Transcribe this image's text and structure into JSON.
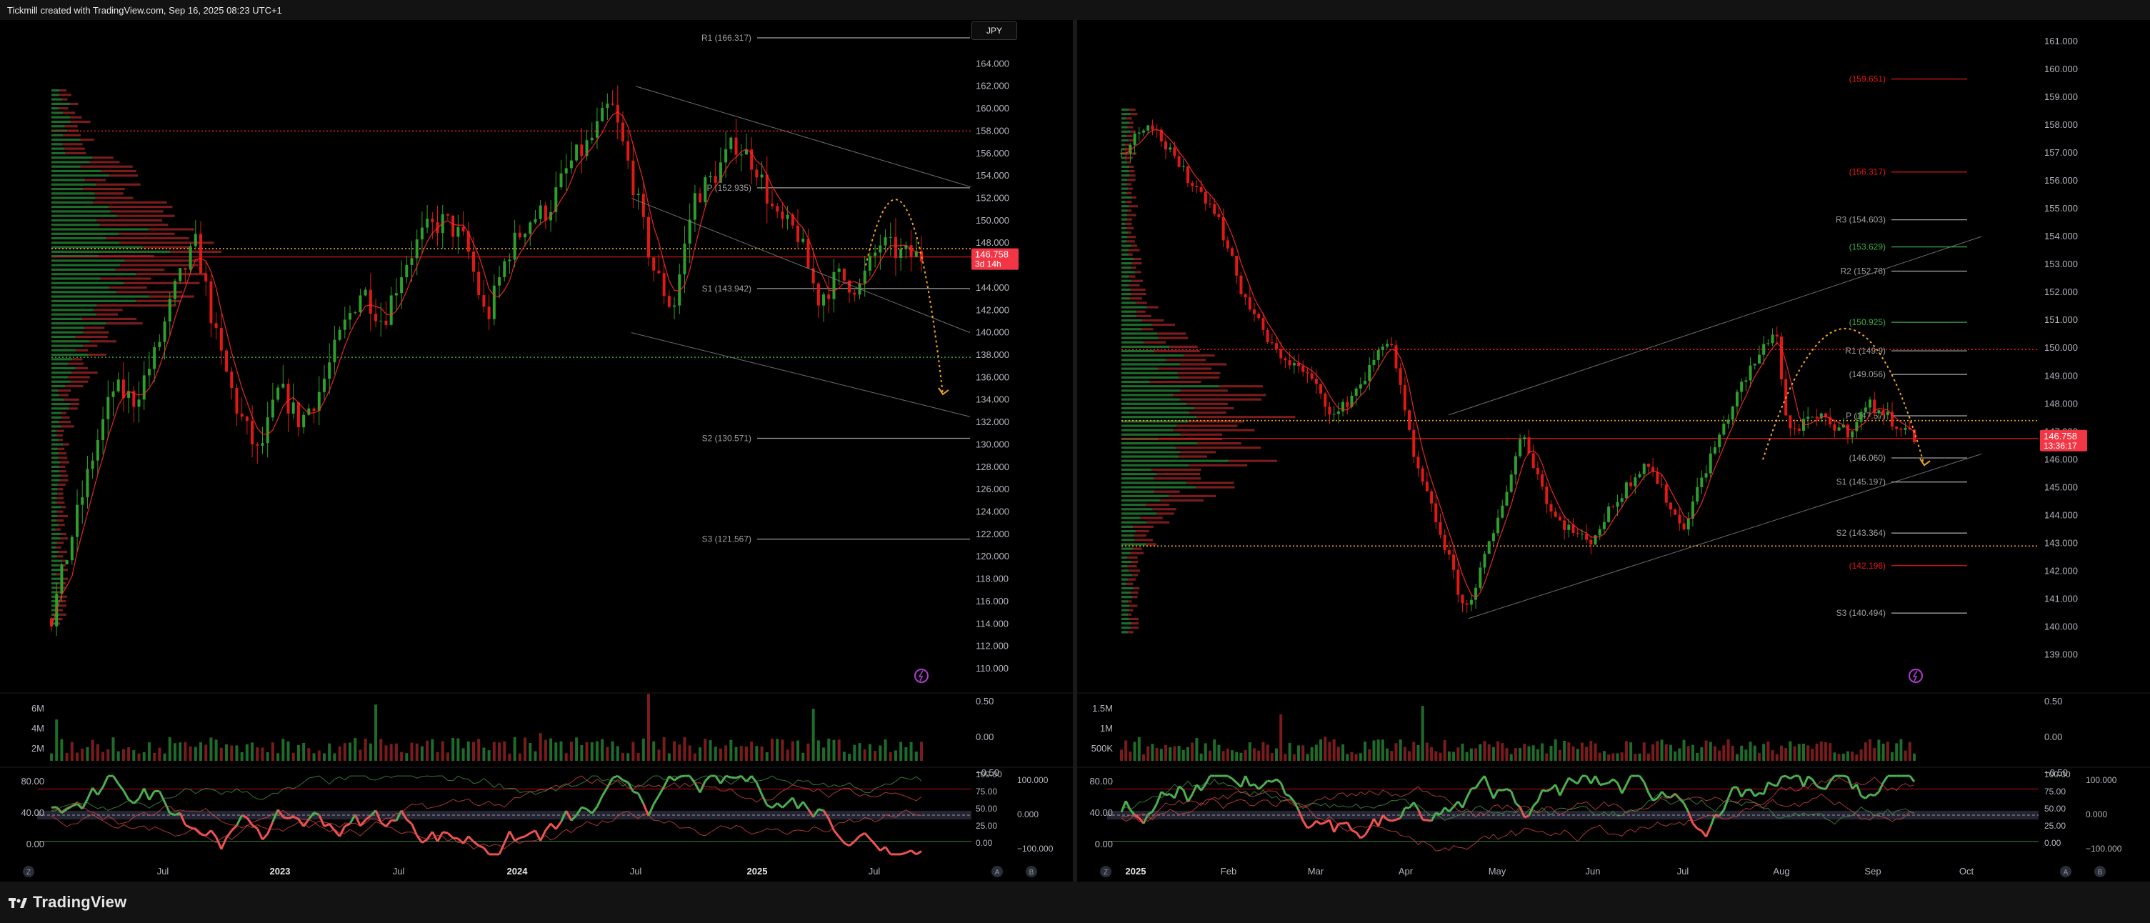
{
  "app": {
    "header_text": "Tickmill created with TradingView.com, Sep 16, 2025 08:23 UTC+1",
    "brand": "TradingView",
    "currency_button": "JPY"
  },
  "colors": {
    "up": "#2e9e2e",
    "down": "#e01818",
    "vp_up": "#1f6b2a",
    "vp_down": "#7a1c1c",
    "price_badge": "#f23645",
    "orange": "#f5a623",
    "green_line": "#39a845",
    "rsi_up": "#4caf50",
    "rsi_down": "#ef5350"
  },
  "chart_data": [
    {
      "type": "candlestick",
      "panel": "left",
      "timeframe_hint": "weekly",
      "ylim": [
        110,
        166
      ],
      "y_ticks": [
        "164.000",
        "162.000",
        "160.000",
        "158.000",
        "156.000",
        "154.000",
        "152.000",
        "150.000",
        "148.000",
        "146.000",
        "144.000",
        "142.000",
        "140.000",
        "138.000",
        "136.000",
        "134.000",
        "132.000",
        "130.000",
        "128.000",
        "126.000",
        "124.000",
        "122.000",
        "120.000",
        "118.000",
        "116.000",
        "114.000",
        "112.000",
        "110.000"
      ],
      "x_ticks": [
        "Jul",
        "2023",
        "Jul",
        "2024",
        "Jul",
        "2025",
        "Jul"
      ],
      "price_path": [
        {
          "d": "2022-03",
          "v": 114.5
        },
        {
          "d": "2022-04",
          "v": 122
        },
        {
          "d": "2022-05",
          "v": 129
        },
        {
          "d": "2022-06",
          "v": 135
        },
        {
          "d": "2022-07",
          "v": 134
        },
        {
          "d": "2022-08",
          "v": 138
        },
        {
          "d": "2022-09",
          "v": 144
        },
        {
          "d": "2022-10",
          "v": 148
        },
        {
          "d": "2022-11",
          "v": 139
        },
        {
          "d": "2022-12",
          "v": 133
        },
        {
          "d": "2023-01",
          "v": 129
        },
        {
          "d": "2023-02",
          "v": 135
        },
        {
          "d": "2023-03",
          "v": 132
        },
        {
          "d": "2023-04",
          "v": 135
        },
        {
          "d": "2023-05",
          "v": 140
        },
        {
          "d": "2023-06",
          "v": 144
        },
        {
          "d": "2023-07",
          "v": 141
        },
        {
          "d": "2023-08",
          "v": 146
        },
        {
          "d": "2023-09",
          "v": 149
        },
        {
          "d": "2023-10",
          "v": 150
        },
        {
          "d": "2023-11",
          "v": 148
        },
        {
          "d": "2023-12",
          "v": 141
        },
        {
          "d": "2024-01",
          "v": 147
        },
        {
          "d": "2024-02",
          "v": 150
        },
        {
          "d": "2024-03",
          "v": 151
        },
        {
          "d": "2024-04",
          "v": 155
        },
        {
          "d": "2024-05",
          "v": 157
        },
        {
          "d": "2024-06",
          "v": 160.5
        },
        {
          "d": "2024-07",
          "v": 154
        },
        {
          "d": "2024-08",
          "v": 146
        },
        {
          "d": "2024-09",
          "v": 142
        },
        {
          "d": "2024-10",
          "v": 152
        },
        {
          "d": "2024-11",
          "v": 154
        },
        {
          "d": "2024-12",
          "v": 157
        },
        {
          "d": "2025-01",
          "v": 155
        },
        {
          "d": "2025-02",
          "v": 150
        },
        {
          "d": "2025-03",
          "v": 149
        },
        {
          "d": "2025-04",
          "v": 143
        },
        {
          "d": "2025-05",
          "v": 145
        },
        {
          "d": "2025-06",
          "v": 144
        },
        {
          "d": "2025-07",
          "v": 148
        },
        {
          "d": "2025-08",
          "v": 147
        },
        {
          "d": "2025-09",
          "v": 146.8
        }
      ],
      "pivots": [
        {
          "label": "R1 (166.317)",
          "value": 166.317,
          "color": "#9e9e9e"
        },
        {
          "label": "P (152.935)",
          "value": 152.935,
          "color": "#9e9e9e"
        },
        {
          "label": "S1 (143.942)",
          "value": 143.942,
          "color": "#9e9e9e"
        },
        {
          "label": "S2 (130.571)",
          "value": 130.571,
          "color": "#9e9e9e"
        },
        {
          "label": "S3 (121.567)",
          "value": 121.567,
          "color": "#9e9e9e"
        }
      ],
      "h_lines": [
        {
          "value": 158.0,
          "color": "#e01818",
          "style": "dotted"
        },
        {
          "value": 147.5,
          "color": "#f5a623",
          "style": "dotted"
        },
        {
          "value": 146.758,
          "color": "#e01818",
          "style": "solid"
        },
        {
          "value": 137.8,
          "color": "#39a845",
          "style": "dotted"
        }
      ],
      "last_price": {
        "value": "146.758",
        "countdown": "3d 14h"
      },
      "volume": {
        "y_ticks": [
          "6M",
          "4M",
          "2M"
        ],
        "right_ticks": [
          "0.50",
          "0.00",
          "−0.50"
        ]
      },
      "oscillator": {
        "y_ticks": [
          "80.00",
          "40.00",
          "0.00"
        ],
        "right_ticks_a": [
          "100.00",
          "75.00",
          "50.00",
          "25.00",
          "0.00"
        ],
        "right_ticks_b": [
          "100.000",
          "0.000",
          "−100.000"
        ]
      }
    },
    {
      "type": "candlestick",
      "panel": "right",
      "timeframe_hint": "daily",
      "ylim": [
        138.5,
        161
      ],
      "y_ticks": [
        "161.000",
        "160.000",
        "159.000",
        "158.000",
        "157.000",
        "156.000",
        "155.000",
        "154.000",
        "153.000",
        "152.000",
        "151.000",
        "150.000",
        "149.000",
        "148.000",
        "147.000",
        "146.000",
        "145.000",
        "144.000",
        "143.000",
        "142.000",
        "141.000",
        "140.000",
        "139.000"
      ],
      "x_ticks": [
        "2025",
        "Feb",
        "Mar",
        "Apr",
        "May",
        "Jun",
        "Jul",
        "Aug",
        "Sep",
        "Oct"
      ],
      "price_path": [
        {
          "d": "2025-01-01",
          "v": 157
        },
        {
          "d": "2025-01-10",
          "v": 158.2
        },
        {
          "d": "2025-01-20",
          "v": 156.5
        },
        {
          "d": "2025-02-01",
          "v": 155
        },
        {
          "d": "2025-02-10",
          "v": 152
        },
        {
          "d": "2025-02-20",
          "v": 150
        },
        {
          "d": "2025-03-01",
          "v": 149
        },
        {
          "d": "2025-03-10",
          "v": 147.5
        },
        {
          "d": "2025-03-20",
          "v": 149
        },
        {
          "d": "2025-03-28",
          "v": 150.5
        },
        {
          "d": "2025-04-05",
          "v": 146
        },
        {
          "d": "2025-04-15",
          "v": 143
        },
        {
          "d": "2025-04-22",
          "v": 140.5
        },
        {
          "d": "2025-05-01",
          "v": 143.5
        },
        {
          "d": "2025-05-10",
          "v": 147
        },
        {
          "d": "2025-05-20",
          "v": 144
        },
        {
          "d": "2025-06-01",
          "v": 143
        },
        {
          "d": "2025-06-10",
          "v": 144.5
        },
        {
          "d": "2025-06-20",
          "v": 146
        },
        {
          "d": "2025-07-01",
          "v": 143.5
        },
        {
          "d": "2025-07-10",
          "v": 146
        },
        {
          "d": "2025-07-20",
          "v": 148.5
        },
        {
          "d": "2025-08-01",
          "v": 150.8
        },
        {
          "d": "2025-08-05",
          "v": 147
        },
        {
          "d": "2025-08-15",
          "v": 147.5
        },
        {
          "d": "2025-08-25",
          "v": 147
        },
        {
          "d": "2025-09-01",
          "v": 148
        },
        {
          "d": "2025-09-10",
          "v": 147.3
        },
        {
          "d": "2025-09-16",
          "v": 146.8
        }
      ],
      "pivots": [
        {
          "label": "(159.651)",
          "value": 159.651,
          "color": "#e01818"
        },
        {
          "label": "(156.317)",
          "value": 156.317,
          "color": "#e01818"
        },
        {
          "label": "R3 (154.603)",
          "value": 154.603,
          "color": "#9e9e9e"
        },
        {
          "label": "(153.629)",
          "value": 153.629,
          "color": "#39a845"
        },
        {
          "label": "R2 (152.76)",
          "value": 152.76,
          "color": "#9e9e9e"
        },
        {
          "label": "(150.925)",
          "value": 150.925,
          "color": "#39a845"
        },
        {
          "label": "R1 (149.9)",
          "value": 149.9,
          "color": "#9e9e9e"
        },
        {
          "label": "(149.056)",
          "value": 149.056,
          "color": "#9e9e9e"
        },
        {
          "label": "P (147.57)",
          "value": 147.57,
          "color": "#9e9e9e"
        },
        {
          "label": "(146.060)",
          "value": 146.06,
          "color": "#9e9e9e"
        },
        {
          "label": "S1 (145.197)",
          "value": 145.197,
          "color": "#9e9e9e"
        },
        {
          "label": "S2 (143.364)",
          "value": 143.364,
          "color": "#9e9e9e"
        },
        {
          "label": "(142.196)",
          "value": 142.196,
          "color": "#e01818"
        },
        {
          "label": "S3 (140.494)",
          "value": 140.494,
          "color": "#9e9e9e"
        }
      ],
      "h_lines": [
        {
          "value": 149.95,
          "color": "#e01818",
          "style": "dotted"
        },
        {
          "value": 147.4,
          "color": "#f5a623",
          "style": "dotted"
        },
        {
          "value": 146.758,
          "color": "#e01818",
          "style": "solid"
        },
        {
          "value": 142.9,
          "color": "#f5a623",
          "style": "dotted"
        }
      ],
      "last_price": {
        "value": "146.758",
        "countdown": "13:36:17"
      },
      "volume": {
        "y_ticks": [
          "1.5M",
          "1M",
          "500K"
        ],
        "right_ticks": [
          "0.50",
          "0.00",
          "−0.50"
        ]
      },
      "oscillator": {
        "y_ticks": [
          "80.00",
          "40.00",
          "0.00"
        ],
        "right_ticks_a": [
          "100.00",
          "75.00",
          "50.00",
          "25.00",
          "0.00"
        ],
        "right_ticks_b": [
          "100.000",
          "0.000",
          "−100.000"
        ]
      }
    }
  ]
}
